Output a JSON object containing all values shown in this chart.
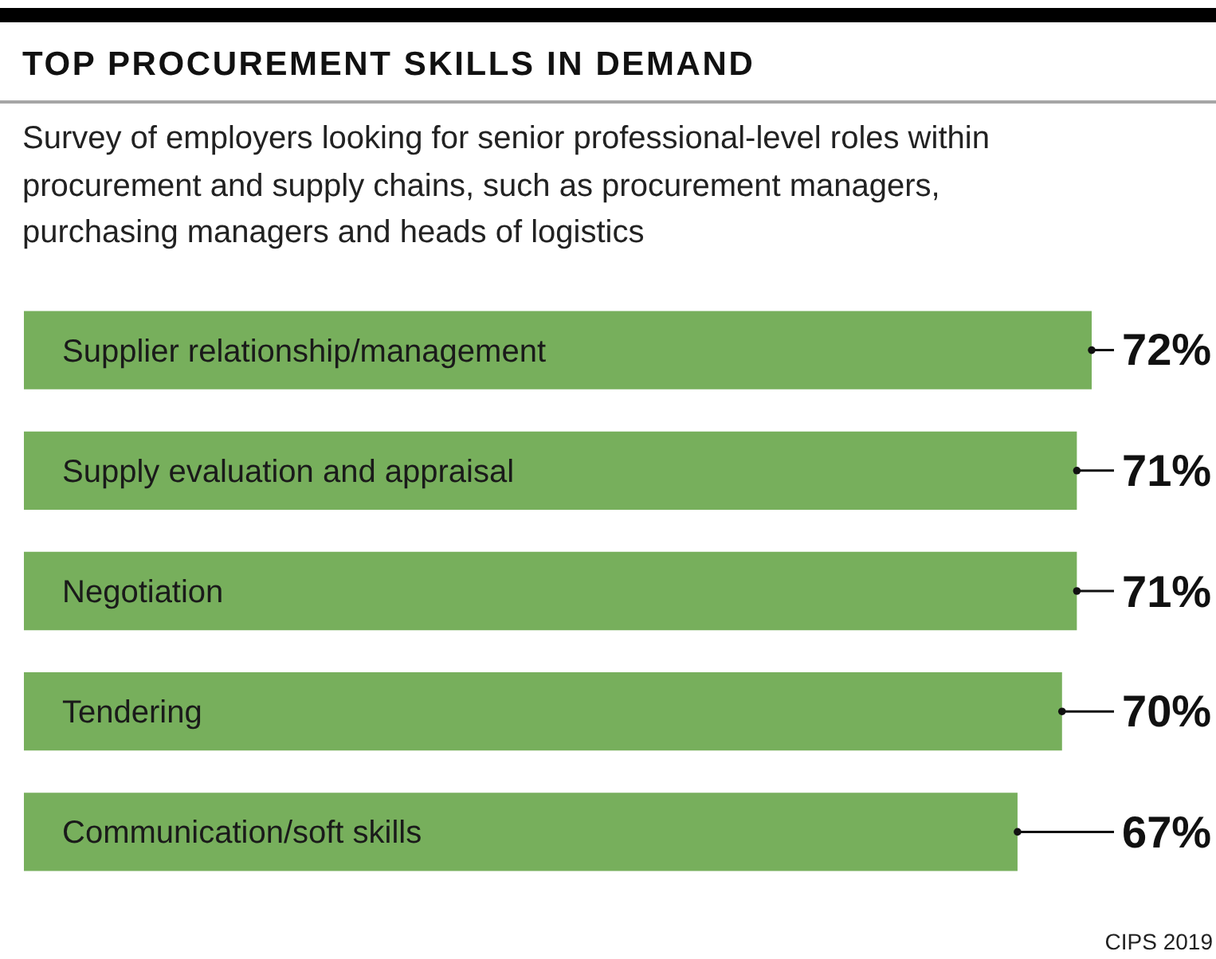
{
  "chart_data": {
    "type": "bar",
    "orientation": "horizontal",
    "title": "TOP PROCUREMENT SKILLS IN DEMAND",
    "subtitle": "Survey of employers looking for senior professional-level roles within procurement and supply chains, such as procurement managers, purchasing managers and heads of logistics",
    "categories": [
      "Supplier relationship/management",
      "Supply evaluation and appraisal",
      "Negotiation",
      "Tendering",
      "Communication/soft skills"
    ],
    "values": [
      72,
      71,
      71,
      70,
      67
    ],
    "value_labels": [
      "72%",
      "71%",
      "71%",
      "70%",
      "67%"
    ],
    "color": "#77af5c",
    "tick_labels": "y",
    "annotations": [
      "CIPS 2019"
    ]
  }
}
